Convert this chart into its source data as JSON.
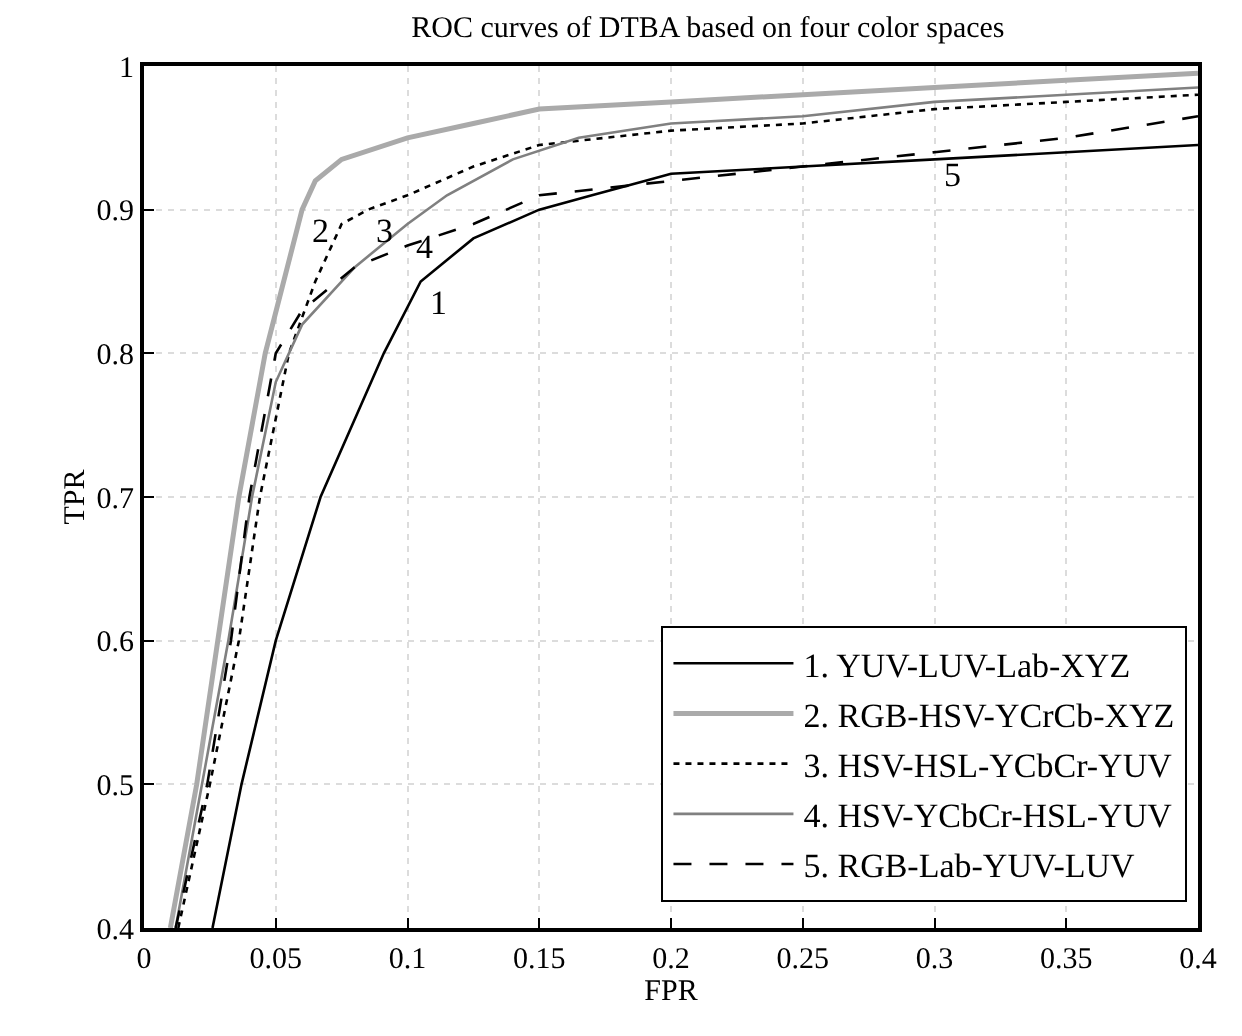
{
  "chart_data": {
    "type": "line",
    "title": "ROC curves of DTBA based on four color spaces",
    "xlabel": "FPR",
    "ylabel": "TPR",
    "xlim": [
      0,
      0.4
    ],
    "xticks": [
      0,
      0.05,
      0.1,
      0.15,
      0.2,
      0.25,
      0.3,
      0.35,
      0.4
    ],
    "ylim": [
      0.4,
      1
    ],
    "yticks": [
      0.4,
      0.5,
      0.6,
      0.7,
      0.8,
      0.9,
      1
    ],
    "grid": true,
    "legend": "bottom right",
    "marker": "none",
    "series": [
      {
        "name": "1. YUV-LUV-Lab-XYZ",
        "color": "#000000",
        "line_style": "solid",
        "x": [
          0.026,
          0.037,
          0.05,
          0.067,
          0.091,
          0.105,
          0.125,
          0.15,
          0.17,
          0.19,
          0.2,
          0.25,
          0.3,
          0.35,
          0.4
        ],
        "values": [
          0.4,
          0.5,
          0.6,
          0.7,
          0.8,
          0.85,
          0.88,
          0.9,
          0.91,
          0.92,
          0.925,
          0.93,
          0.935,
          0.94,
          0.945
        ]
      },
      {
        "name": "2. RGB-HSV-YCrCb-XYZ",
        "color": "#aaaaaa",
        "line_style": "solid",
        "x": [
          0.01,
          0.02,
          0.028,
          0.036,
          0.046,
          0.06,
          0.065,
          0.075,
          0.1,
          0.125,
          0.15,
          0.2,
          0.25,
          0.3,
          0.35,
          0.4
        ],
        "values": [
          0.4,
          0.5,
          0.6,
          0.7,
          0.8,
          0.9,
          0.92,
          0.935,
          0.95,
          0.96,
          0.97,
          0.975,
          0.98,
          0.985,
          0.99,
          0.995
        ]
      },
      {
        "name": "3. HSV-HSL-YCbCr-YUV",
        "color": "#000000",
        "line_style": "dotted",
        "x": [
          0.013,
          0.025,
          0.036,
          0.044,
          0.055,
          0.065,
          0.075,
          0.085,
          0.1,
          0.125,
          0.15,
          0.2,
          0.25,
          0.3,
          0.35,
          0.4
        ],
        "values": [
          0.4,
          0.5,
          0.6,
          0.7,
          0.8,
          0.85,
          0.89,
          0.9,
          0.91,
          0.93,
          0.945,
          0.955,
          0.96,
          0.97,
          0.975,
          0.98
        ]
      },
      {
        "name": "4. HSV-YCbCr-HSL-YUV",
        "color": "#808080",
        "line_style": "solid",
        "x": [
          0.012,
          0.022,
          0.032,
          0.041,
          0.05,
          0.06,
          0.08,
          0.1,
          0.115,
          0.14,
          0.165,
          0.2,
          0.25,
          0.3,
          0.35,
          0.4
        ],
        "values": [
          0.4,
          0.5,
          0.6,
          0.7,
          0.78,
          0.82,
          0.86,
          0.89,
          0.91,
          0.935,
          0.95,
          0.96,
          0.965,
          0.975,
          0.98,
          0.985
        ]
      },
      {
        "name": "5. RGB-Lab-YUV-LUV",
        "color": "#000000",
        "line_style": "dashed",
        "x": [
          0.012,
          0.024,
          0.033,
          0.04,
          0.05,
          0.06,
          0.08,
          0.1,
          0.125,
          0.15,
          0.2,
          0.25,
          0.3,
          0.35,
          0.4
        ],
        "values": [
          0.4,
          0.5,
          0.6,
          0.7,
          0.8,
          0.83,
          0.86,
          0.875,
          0.89,
          0.91,
          0.92,
          0.93,
          0.94,
          0.95,
          0.965
        ]
      }
    ],
    "annotations": [
      {
        "text": "1",
        "x": 0.105,
        "y": 0.85
      },
      {
        "text": "2",
        "x": 0.06,
        "y": 0.9
      },
      {
        "text": "3",
        "x": 0.085,
        "y": 0.9
      },
      {
        "text": "4",
        "x": 0.1,
        "y": 0.89
      },
      {
        "text": "5",
        "x": 0.3,
        "y": 0.94
      }
    ]
  }
}
